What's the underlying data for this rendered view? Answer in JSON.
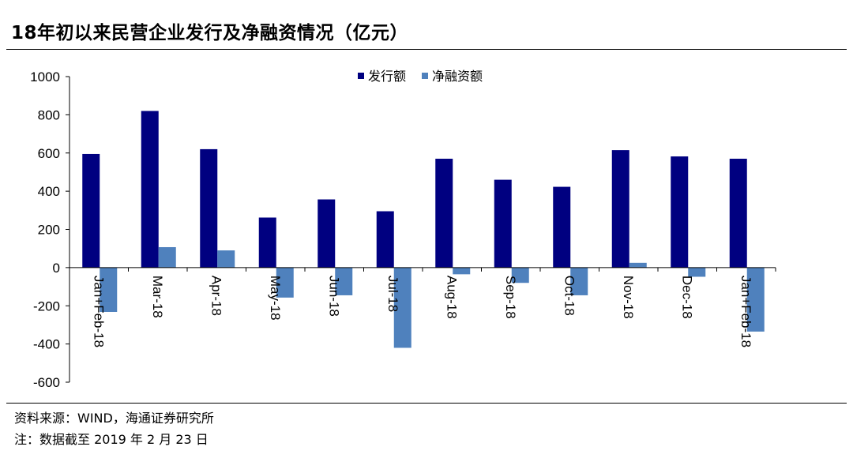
{
  "title": "18年初以来民营企业发行及净融资情况（亿元）",
  "footer": {
    "source": "资料来源：WIND，海通证券研究所",
    "note": "注：数据截至 2019 年 2 月 23 日"
  },
  "colors": {
    "issuance": "#000080",
    "net_financing": "#4f81bd",
    "axis": "#000000"
  },
  "chart_data": {
    "type": "bar",
    "title": "",
    "xlabel": "",
    "ylabel": "",
    "categories": [
      "Jan+Feb-18",
      "Mar-18",
      "Apr-18",
      "May-18",
      "Jun-18",
      "Jul-18",
      "Aug-18",
      "Sep-18",
      "Oct-18",
      "Nov-18",
      "Dec-18",
      "Jan+Feb-18"
    ],
    "series": [
      {
        "name": "发行额",
        "values": [
          595,
          820,
          620,
          262,
          357,
          295,
          570,
          460,
          423,
          615,
          582,
          570
        ]
      },
      {
        "name": "净融资额",
        "values": [
          -232,
          107,
          90,
          -157,
          -145,
          -420,
          -35,
          -80,
          -145,
          25,
          -48,
          -335
        ]
      }
    ],
    "ylim": [
      -600,
      1000
    ],
    "yticks": [
      1000,
      800,
      600,
      400,
      200,
      0,
      -200,
      -400,
      -600
    ],
    "legend_position": "top-center",
    "grid": false
  }
}
